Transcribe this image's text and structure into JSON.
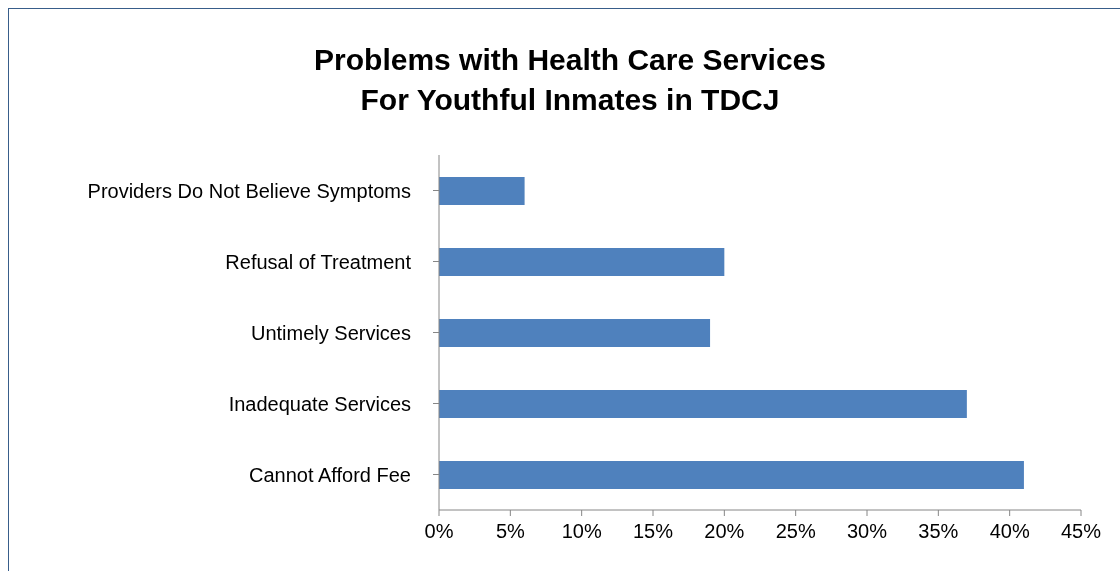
{
  "chart_data": {
    "type": "bar",
    "orientation": "horizontal",
    "title": "Problems with Health Care Services\nFor Youthful Inmates in TDCJ",
    "categories": [
      "Providers Do Not Believe Symptoms",
      "Refusal of Treatment",
      "Untimely Services",
      "Inadequate Services",
      "Cannot Afford Fee"
    ],
    "values": [
      0.06,
      0.2,
      0.19,
      0.37,
      0.41
    ],
    "color": "#4f81bd",
    "xlim": [
      0,
      0.45
    ],
    "xticks": [
      {
        "value": 0,
        "label": "0%"
      },
      {
        "value": 0.05,
        "label": "5%"
      },
      {
        "value": 0.1,
        "label": "10%"
      },
      {
        "value": 0.15,
        "label": "15%"
      },
      {
        "value": 0.2,
        "label": "20%"
      },
      {
        "value": 0.25,
        "label": "25%"
      },
      {
        "value": 0.3,
        "label": "30%"
      },
      {
        "value": 0.35,
        "label": "35%"
      },
      {
        "value": 0.4,
        "label": "40%"
      },
      {
        "value": 0.45,
        "label": "45%"
      }
    ],
    "grid": false,
    "legend": false
  }
}
